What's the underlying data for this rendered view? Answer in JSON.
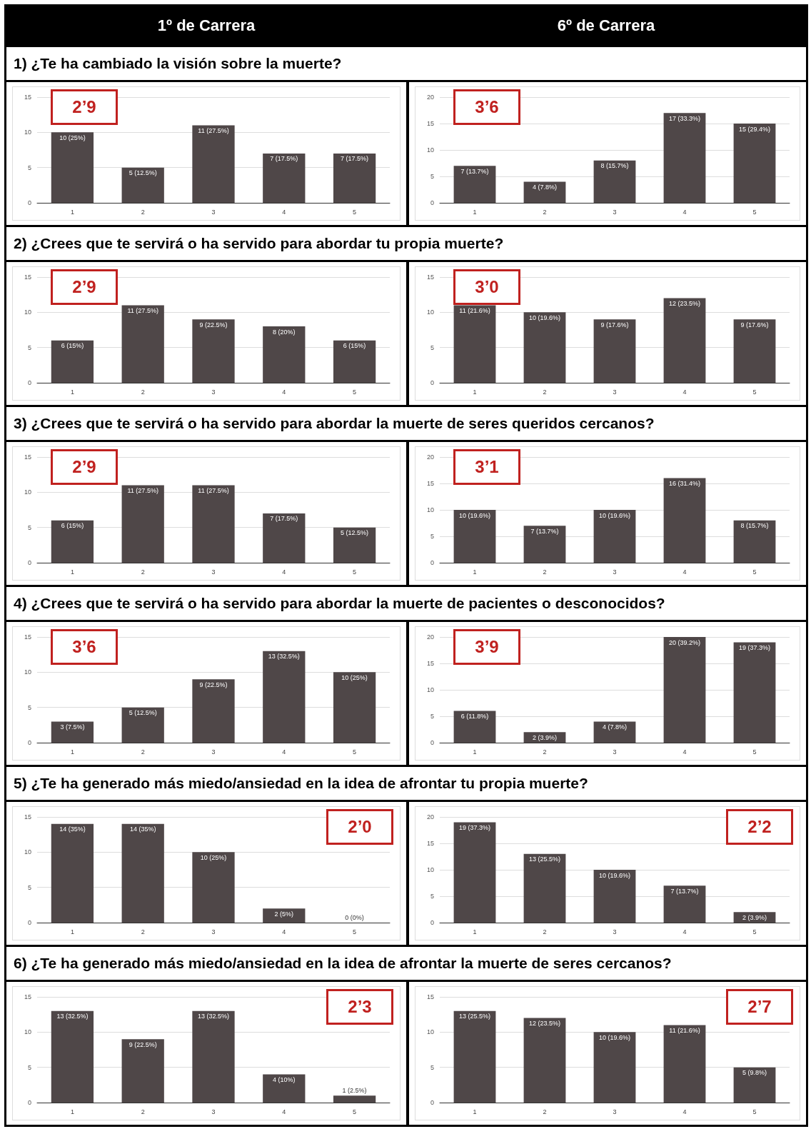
{
  "chart_data": [
    {
      "type": "bar",
      "title": "1º de Carrera",
      "subtitle": "1) ¿Te ha cambiado la visión sobre la muerte?",
      "categories": [
        "1",
        "2",
        "3",
        "4",
        "5"
      ],
      "values": [
        10,
        5,
        11,
        7,
        7
      ],
      "value_labels": [
        "10 (25%)",
        "5 (12.5%)",
        "11 (27.5%)",
        "7 (17.5%)",
        "7 (17.5%)"
      ],
      "color": "#4f4748",
      "ylim": [
        0,
        15
      ],
      "yticks": [
        0,
        5,
        10,
        15
      ],
      "grid": "y",
      "annotations": [
        "2’9"
      ]
    },
    {
      "type": "bar",
      "title": "6º de Carrera",
      "categories": [
        "1",
        "2",
        "3",
        "4",
        "5"
      ],
      "values": [
        7,
        4,
        8,
        17,
        15
      ],
      "value_labels": [
        "7 (13.7%)",
        "4 (7.8%)",
        "8 (15.7%)",
        "17 (33.3%)",
        "15 (29.4%)"
      ],
      "color": "#4f4748",
      "ylim": [
        0,
        20
      ],
      "yticks": [
        0,
        5,
        10,
        15,
        20
      ],
      "grid": "y",
      "annotations": [
        "3’6"
      ]
    },
    {
      "type": "bar",
      "subtitle": "2) ¿Crees que te servirá o ha servido para abordar tu propia muerte?",
      "categories": [
        "1",
        "2",
        "3",
        "4",
        "5"
      ],
      "values": [
        6,
        11,
        9,
        8,
        6
      ],
      "value_labels": [
        "6 (15%)",
        "11 (27.5%)",
        "9 (22.5%)",
        "8 (20%)",
        "6 (15%)"
      ],
      "color": "#4f4748",
      "ylim": [
        0,
        15
      ],
      "yticks": [
        0,
        5,
        10,
        15
      ],
      "grid": "y",
      "annotations": [
        "2’9"
      ]
    },
    {
      "type": "bar",
      "categories": [
        "1",
        "2",
        "3",
        "4",
        "5"
      ],
      "values": [
        11,
        10,
        9,
        12,
        9
      ],
      "value_labels": [
        "11 (21.6%)",
        "10 (19.6%)",
        "9 (17.6%)",
        "12 (23.5%)",
        "9 (17.6%)"
      ],
      "color": "#4f4748",
      "ylim": [
        0,
        15
      ],
      "yticks": [
        0,
        5,
        10,
        15
      ],
      "grid": "y",
      "annotations": [
        "3’0"
      ]
    },
    {
      "type": "bar",
      "subtitle": "3) ¿Crees que te servirá o ha servido para abordar la muerte de seres queridos cercanos?",
      "categories": [
        "1",
        "2",
        "3",
        "4",
        "5"
      ],
      "values": [
        6,
        11,
        11,
        7,
        5
      ],
      "value_labels": [
        "6 (15%)",
        "11 (27.5%)",
        "11 (27.5%)",
        "7 (17.5%)",
        "5 (12.5%)"
      ],
      "color": "#4f4748",
      "ylim": [
        0,
        15
      ],
      "yticks": [
        0,
        5,
        10,
        15
      ],
      "grid": "y",
      "annotations": [
        "2’9"
      ]
    },
    {
      "type": "bar",
      "categories": [
        "1",
        "2",
        "3",
        "4",
        "5"
      ],
      "values": [
        10,
        7,
        10,
        16,
        8
      ],
      "value_labels": [
        "10 (19.6%)",
        "7 (13.7%)",
        "10 (19.6%)",
        "16 (31.4%)",
        "8 (15.7%)"
      ],
      "color": "#4f4748",
      "ylim": [
        0,
        20
      ],
      "yticks": [
        0,
        5,
        10,
        15,
        20
      ],
      "grid": "y",
      "annotations": [
        "3’1"
      ]
    },
    {
      "type": "bar",
      "subtitle": "4) ¿Crees que te servirá o ha servido para abordar la muerte de pacientes o desconocidos?",
      "categories": [
        "1",
        "2",
        "3",
        "4",
        "5"
      ],
      "values": [
        3,
        5,
        9,
        13,
        10
      ],
      "value_labels": [
        "3 (7.5%)",
        "5 (12.5%)",
        "9 (22.5%)",
        "13 (32.5%)",
        "10 (25%)"
      ],
      "color": "#4f4748",
      "ylim": [
        0,
        15
      ],
      "yticks": [
        0,
        5,
        10,
        15
      ],
      "grid": "y",
      "annotations": [
        "3’6"
      ]
    },
    {
      "type": "bar",
      "categories": [
        "1",
        "2",
        "3",
        "4",
        "5"
      ],
      "values": [
        6,
        2,
        4,
        20,
        19
      ],
      "value_labels": [
        "6 (11.8%)",
        "2 (3.9%)",
        "4 (7.8%)",
        "20 (39.2%)",
        "19 (37.3%)"
      ],
      "color": "#4f4748",
      "ylim": [
        0,
        20
      ],
      "yticks": [
        0,
        5,
        10,
        15,
        20
      ],
      "grid": "y",
      "annotations": [
        "3’9"
      ]
    },
    {
      "type": "bar",
      "subtitle": "5) ¿Te ha generado más miedo/ansiedad en la idea de afrontar tu propia muerte?",
      "categories": [
        "1",
        "2",
        "3",
        "4",
        "5"
      ],
      "values": [
        14,
        14,
        10,
        2,
        0
      ],
      "value_labels": [
        "14 (35%)",
        "14 (35%)",
        "10 (25%)",
        "2 (5%)",
        "0 (0%)"
      ],
      "color": "#4f4748",
      "ylim": [
        0,
        15
      ],
      "yticks": [
        0,
        5,
        10,
        15
      ],
      "grid": "y",
      "annotations": [
        "2’0"
      ]
    },
    {
      "type": "bar",
      "categories": [
        "1",
        "2",
        "3",
        "4",
        "5"
      ],
      "values": [
        19,
        13,
        10,
        7,
        2
      ],
      "value_labels": [
        "19 (37.3%)",
        "13 (25.5%)",
        "10 (19.6%)",
        "7 (13.7%)",
        "2 (3.9%)"
      ],
      "color": "#4f4748",
      "ylim": [
        0,
        20
      ],
      "yticks": [
        0,
        5,
        10,
        15,
        20
      ],
      "grid": "y",
      "annotations": [
        "2’2"
      ]
    },
    {
      "type": "bar",
      "subtitle": "6) ¿Te ha generado más miedo/ansiedad en la idea de afrontar la muerte de seres cercanos?",
      "categories": [
        "1",
        "2",
        "3",
        "4",
        "5"
      ],
      "values": [
        13,
        9,
        13,
        4,
        1
      ],
      "value_labels": [
        "13 (32.5%)",
        "9 (22.5%)",
        "13 (32.5%)",
        "4 (10%)",
        "1 (2.5%)"
      ],
      "color": "#4f4748",
      "ylim": [
        0,
        15
      ],
      "yticks": [
        0,
        5,
        10,
        15
      ],
      "grid": "y",
      "annotations": [
        "2’3"
      ]
    },
    {
      "type": "bar",
      "categories": [
        "1",
        "2",
        "3",
        "4",
        "5"
      ],
      "values": [
        13,
        12,
        10,
        11,
        5
      ],
      "value_labels": [
        "13 (25.5%)",
        "12 (23.5%)",
        "10 (19.6%)",
        "11 (21.6%)",
        "5 (9.8%)"
      ],
      "color": "#4f4748",
      "ylim": [
        0,
        15
      ],
      "yticks": [
        0,
        5,
        10,
        15
      ],
      "grid": "y",
      "annotations": [
        "2’7"
      ]
    }
  ]
}
